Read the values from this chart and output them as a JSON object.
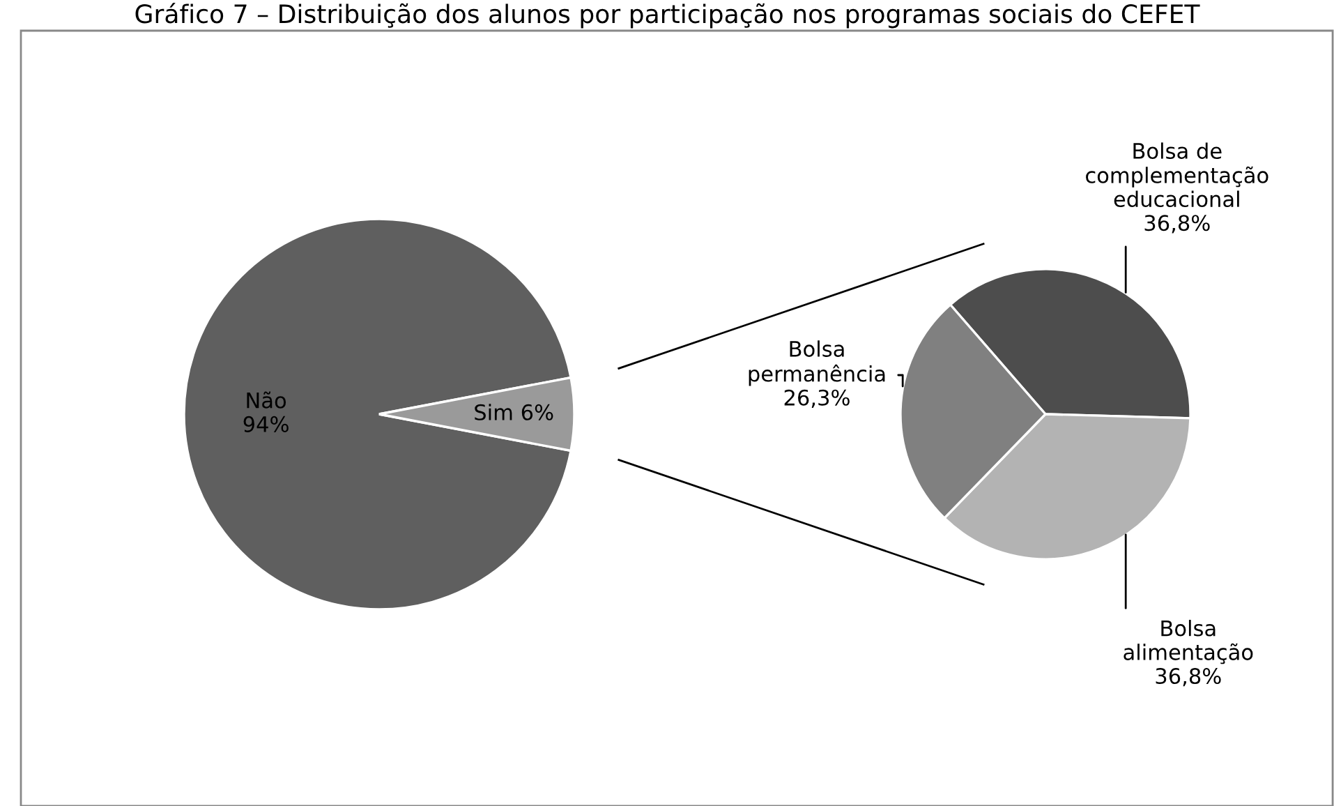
{
  "chart_data": [
    {
      "type": "pie",
      "title": "Gráfico 7 – Distribuição dos alunos por participação nos programas sociais do CEFET",
      "categories": [
        "Não",
        "Sim"
      ],
      "values": [
        94,
        6
      ],
      "colors": [
        "#5f5f5f",
        "#9a9a9a"
      ],
      "value_labels": [
        "94%",
        "6%"
      ]
    },
    {
      "type": "pie",
      "categories": [
        "Bolsa de complementação educacional",
        "Bolsa alimentação",
        "Bolsa permanência"
      ],
      "values": [
        36.8,
        36.8,
        26.3
      ],
      "colors": [
        "#4d4d4d",
        "#b3b3b3",
        "#808080"
      ],
      "value_labels": [
        "36,8%",
        "36,8%",
        "26,3%"
      ]
    }
  ]
}
